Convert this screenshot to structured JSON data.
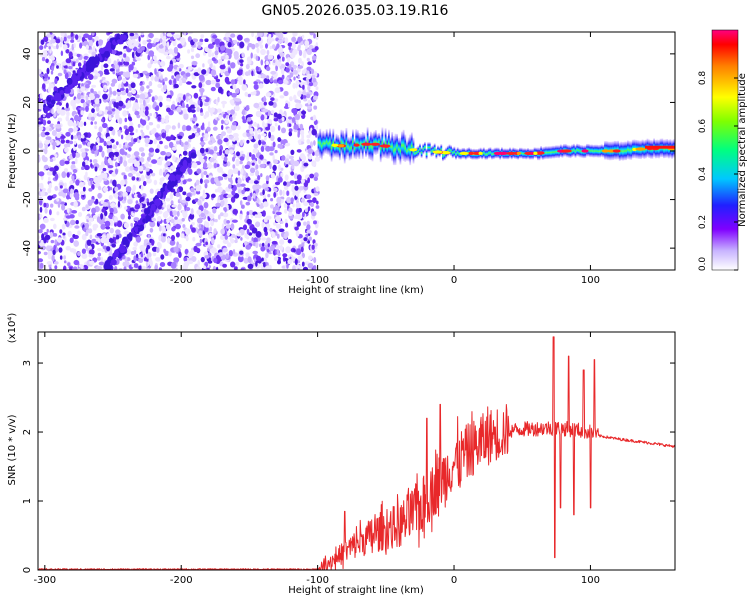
{
  "title": "GN05.2026.035.03.19.R16",
  "chart_data": [
    {
      "type": "heatmap",
      "xlabel": "Height of straight line (km)",
      "ylabel": "Frequency (Hz)",
      "xlim": [
        -305,
        162
      ],
      "ylim": [
        -49,
        49
      ],
      "xticks": [
        -300,
        -200,
        -100,
        0,
        100
      ],
      "yticks": [
        -40,
        -20,
        0,
        20,
        40
      ],
      "colorbar": {
        "label": "Normalized spectral amplitude",
        "range": [
          0,
          1
        ],
        "ticks": [
          0.0,
          0.2,
          0.4,
          0.6,
          0.8
        ],
        "tick_labels": [
          "0.0",
          "0.2",
          "0.4",
          "0.6",
          "0.8"
        ]
      },
      "features": {
        "noise_region_x": [
          -305,
          -100
        ],
        "signal_band": {
          "x": [
            -100,
            -80,
            -60,
            -40,
            -20,
            0,
            20,
            40,
            60,
            80,
            100,
            120,
            140,
            162
          ],
          "freq_center": [
            3,
            2,
            3,
            1,
            0,
            -1,
            -1,
            -1,
            -1,
            0,
            0,
            0,
            1,
            1
          ]
        },
        "diagonal_lines": [
          {
            "x": [
              -300,
              -240
            ],
            "freq": [
              18,
              49
            ]
          },
          {
            "x": [
              -255,
              -190
            ],
            "freq": [
              -49,
              0
            ]
          }
        ]
      }
    },
    {
      "type": "line",
      "xlabel": "Height of straight line (km)",
      "ylabel": "SNR (10 * v/v)",
      "y_multiplier": "(x10⁴)",
      "xlim": [
        -305,
        162
      ],
      "ylim": [
        0,
        3.45
      ],
      "xticks": [
        -300,
        -200,
        -100,
        0,
        100
      ],
      "yticks": [
        0,
        1,
        2,
        3
      ],
      "series_color": "#e8282a",
      "envelope": {
        "x": [
          -305,
          -100,
          -85,
          -70,
          -55,
          -40,
          -25,
          -10,
          0,
          10,
          20,
          30,
          40,
          50,
          60,
          70,
          80,
          90,
          100,
          105,
          120,
          140,
          162
        ],
        "y": [
          0.0,
          0.0,
          0.2,
          0.4,
          0.55,
          0.65,
          0.9,
          1.3,
          1.55,
          1.72,
          1.85,
          1.98,
          2.02,
          2.04,
          2.05,
          2.06,
          2.05,
          2.03,
          2.0,
          1.95,
          1.9,
          1.85,
          1.79
        ]
      },
      "spikes": [
        {
          "x": -80,
          "y": 0.85
        },
        {
          "x": -20,
          "y": 2.2
        },
        {
          "x": -10,
          "y": 2.4
        },
        {
          "x": 73,
          "y": 3.38
        },
        {
          "x": 74,
          "y": 0.18
        },
        {
          "x": 78,
          "y": 0.9
        },
        {
          "x": 84,
          "y": 3.1
        },
        {
          "x": 88,
          "y": 0.8
        },
        {
          "x": 95,
          "y": 2.9
        },
        {
          "x": 100,
          "y": 0.9
        },
        {
          "x": 103,
          "y": 3.05
        }
      ]
    }
  ]
}
